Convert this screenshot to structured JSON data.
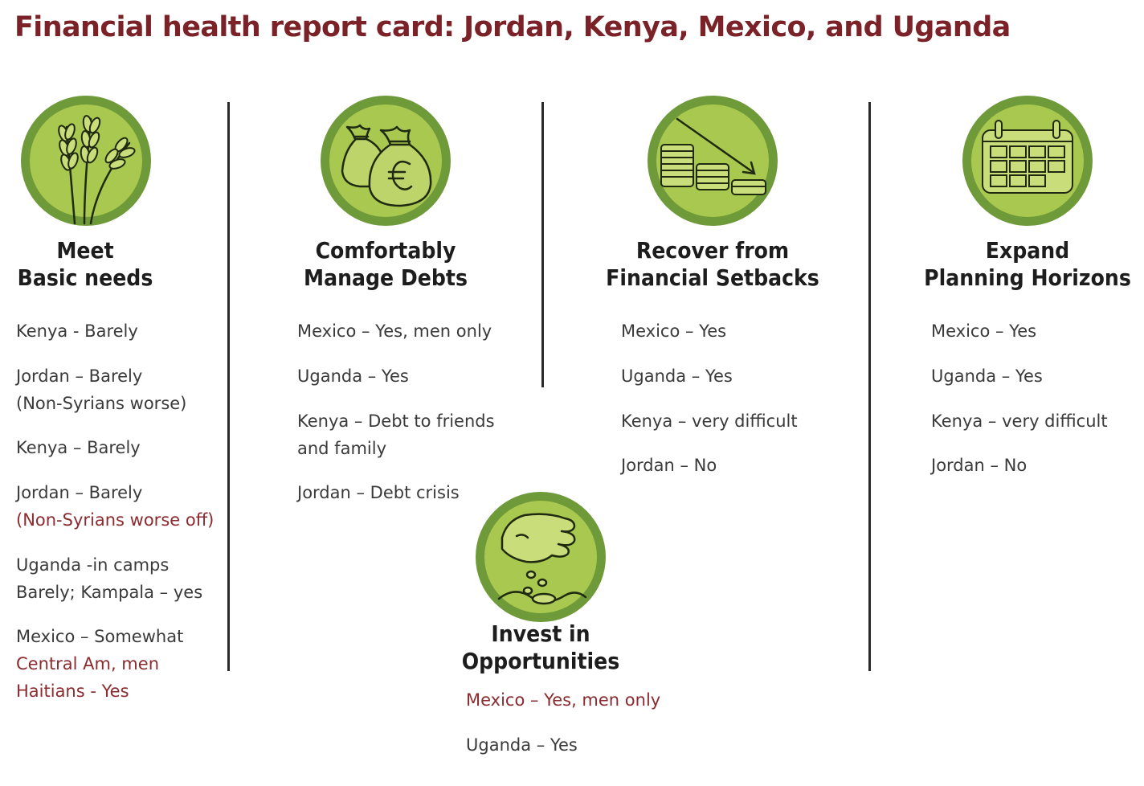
{
  "title": "Financial health report card: Jordan, Kenya, Mexico, and Uganda",
  "colors": {
    "title": "#7b2128",
    "accent_text": "#8b2b2f",
    "icon_outer": "#6f9a3a",
    "icon_inner": "#a8c84f"
  },
  "columns": [
    {
      "icon": "wheat-icon",
      "heading": [
        "Meet",
        "Basic needs"
      ],
      "items": [
        {
          "lines": [
            {
              "text": "Kenya - Barely"
            }
          ]
        },
        {
          "lines": [
            {
              "text": "Jordan – Barely"
            },
            {
              "text": "(Non-Syrians worse)"
            }
          ]
        },
        {
          "lines": [
            {
              "text": "Kenya – Barely"
            }
          ]
        },
        {
          "lines": [
            {
              "text": "Jordan – Barely"
            },
            {
              "text": "(Non-Syrians worse off)",
              "accent": true
            }
          ]
        },
        {
          "lines": [
            {
              "text": "Uganda -in camps"
            },
            {
              "text": "Barely; Kampala – yes"
            }
          ]
        },
        {
          "lines": [
            {
              "text": "Mexico – Somewhat"
            },
            {
              "text": "Central Am, men",
              "accent": true
            },
            {
              "text": "Haitians - Yes",
              "accent": true
            }
          ]
        }
      ]
    },
    {
      "icon": "money-bags-icon",
      "heading": [
        "Comfortably",
        "Manage Debts"
      ],
      "items": [
        {
          "lines": [
            {
              "text": "Mexico – Yes, men only"
            }
          ]
        },
        {
          "lines": [
            {
              "text": "Uganda – Yes"
            }
          ]
        },
        {
          "lines": [
            {
              "text": "Kenya – Debt to friends"
            },
            {
              "text": "and family"
            }
          ]
        },
        {
          "lines": [
            {
              "text": "Jordan – Debt crisis"
            }
          ]
        }
      ]
    },
    {
      "icon": "declining-coins-icon",
      "heading": [
        "Recover from",
        "Financial Setbacks"
      ],
      "items": [
        {
          "lines": [
            {
              "text": "Mexico – Yes"
            }
          ]
        },
        {
          "lines": [
            {
              "text": "Uganda – Yes"
            }
          ]
        },
        {
          "lines": [
            {
              "text": "Kenya – very difficult"
            }
          ]
        },
        {
          "lines": [
            {
              "text": "Jordan – No"
            }
          ]
        }
      ]
    },
    {
      "icon": "calendar-icon",
      "heading": [
        "Expand",
        "Planning Horizons"
      ],
      "items": [
        {
          "lines": [
            {
              "text": "Mexico – Yes"
            }
          ]
        },
        {
          "lines": [
            {
              "text": "Uganda – Yes"
            }
          ]
        },
        {
          "lines": [
            {
              "text": "Kenya – very difficult"
            }
          ]
        },
        {
          "lines": [
            {
              "text": "Jordan – No"
            }
          ]
        }
      ]
    },
    {
      "icon": "sowing-hand-icon",
      "heading": [
        "Invest in",
        "Opportunities"
      ],
      "items": [
        {
          "lines": [
            {
              "text": "Mexico – Yes, men only",
              "accent": true
            }
          ]
        },
        {
          "lines": [
            {
              "text": "Uganda – Yes"
            }
          ]
        }
      ]
    }
  ]
}
